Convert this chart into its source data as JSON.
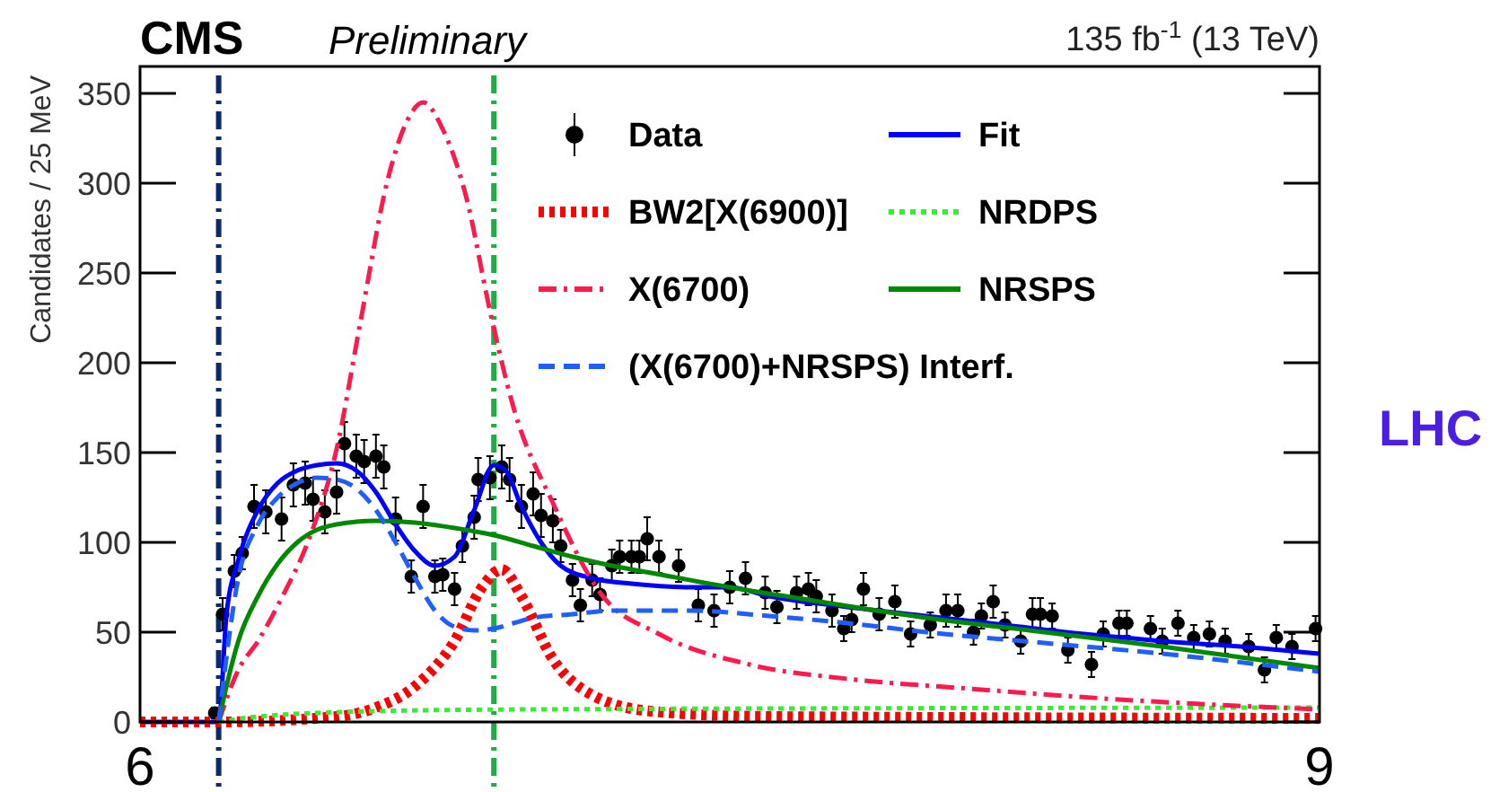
{
  "chart_data": {
    "type": "line",
    "title": "CMS",
    "subtitle": "Preliminary",
    "ylabel": "Candidates / 25 MeV",
    "annotations": [
      "135 fb$^{-1}$ (13 TeV)",
      "LHC"
    ],
    "xlim": [
      6,
      9
    ],
    "xticks": [
      6,
      9
    ],
    "ylim": [
      0,
      365
    ],
    "yticks": [
      0,
      50,
      100,
      150,
      200,
      250,
      300,
      350
    ],
    "grid": false,
    "legend": "top right",
    "ref_lines": [
      {
        "axis": "x",
        "value": 6.2,
        "color": "#0a2a6e",
        "line_style": "dashdot"
      },
      {
        "axis": "x",
        "value": 6.9,
        "color": "#22aa44",
        "line_style": "dashdot"
      }
    ],
    "series": [
      {
        "name": "Data",
        "type": "scatter",
        "marker": "circle",
        "color": "#000000",
        "x": [
          6.19,
          6.21,
          6.24,
          6.26,
          6.29,
          6.32,
          6.36,
          6.39,
          6.42,
          6.44,
          6.47,
          6.5,
          6.52,
          6.55,
          6.57,
          6.6,
          6.62,
          6.65,
          6.69,
          6.72,
          6.75,
          6.77,
          6.8,
          6.82,
          6.85,
          6.86,
          6.89,
          6.92,
          6.94,
          6.97,
          7.0,
          7.02,
          7.05,
          7.07,
          7.1,
          7.12,
          7.15,
          7.17,
          7.2,
          7.22,
          7.25,
          7.27,
          7.29,
          7.32,
          7.37,
          7.42,
          7.46,
          7.5,
          7.54,
          7.59,
          7.62,
          7.67,
          7.7,
          7.72,
          7.76,
          7.79,
          7.81,
          7.84,
          7.88,
          7.92,
          7.96,
          8.01,
          8.05,
          8.08,
          8.12,
          8.14,
          8.17,
          8.2,
          8.24,
          8.27,
          8.29,
          8.32,
          8.36,
          8.42,
          8.45,
          8.49,
          8.51,
          8.57,
          8.6,
          8.64,
          8.68,
          8.72,
          8.76,
          8.82,
          8.86,
          8.89,
          8.93,
          8.99
        ],
        "values": [
          5,
          60,
          84,
          94,
          120,
          117,
          113,
          132,
          133,
          124,
          117,
          128,
          155,
          148,
          145,
          148,
          142,
          113,
          81,
          120,
          81,
          82,
          74,
          98,
          114,
          135,
          136,
          142,
          135,
          120,
          127,
          115,
          112,
          98,
          79,
          65,
          79,
          71,
          87,
          92,
          92,
          92,
          102,
          92,
          87,
          65,
          62,
          75,
          80,
          72,
          64,
          72,
          74,
          70,
          62,
          52,
          57,
          74,
          60,
          67,
          49,
          54,
          62,
          62,
          50,
          59,
          67,
          54,
          45,
          60,
          60,
          59,
          40,
          32,
          49,
          55,
          55,
          52,
          45,
          55,
          47,
          49,
          45,
          42,
          29,
          47,
          42,
          52
        ],
        "errors": [
          3,
          9,
          9,
          9,
          12,
          12,
          12,
          12,
          12,
          12,
          12,
          12,
          12,
          12,
          12,
          12,
          12,
          12,
          9,
          12,
          9,
          9,
          9,
          9,
          12,
          12,
          12,
          12,
          12,
          12,
          12,
          12,
          12,
          9,
          9,
          9,
          9,
          9,
          9,
          9,
          9,
          9,
          12,
          9,
          9,
          9,
          9,
          9,
          9,
          9,
          9,
          9,
          9,
          9,
          9,
          7,
          7,
          9,
          9,
          9,
          7,
          7,
          9,
          9,
          7,
          7,
          9,
          7,
          7,
          9,
          9,
          7,
          7,
          7,
          7,
          7,
          7,
          7,
          7,
          7,
          7,
          7,
          7,
          7,
          7,
          7,
          7,
          7
        ]
      },
      {
        "name": "Fit",
        "line_style": "solid",
        "color": "#0000ff",
        "x": [
          6.0,
          6.19,
          6.2,
          6.22,
          6.25,
          6.3,
          6.35,
          6.4,
          6.45,
          6.5,
          6.55,
          6.6,
          6.65,
          6.7,
          6.75,
          6.8,
          6.85,
          6.9,
          6.93,
          6.97,
          7.02,
          7.07,
          7.15,
          7.25,
          7.4,
          7.5,
          7.6,
          7.8,
          8.0,
          8.2,
          8.4,
          8.5,
          8.6,
          8.8,
          9.0
        ],
        "values": [
          0,
          0,
          0,
          60,
          90,
          118,
          133,
          140,
          143,
          144,
          140,
          128,
          110,
          95,
          87,
          92,
          118,
          143,
          140,
          120,
          100,
          87,
          80,
          77,
          75,
          75,
          70,
          64,
          59,
          54,
          49,
          47,
          45,
          42,
          38
        ]
      },
      {
        "name": "BW2[X(6900)]",
        "line_style": "dotted",
        "color": "#ff0000",
        "x": [
          6.0,
          6.2,
          6.5,
          6.6,
          6.7,
          6.8,
          6.87,
          6.92,
          6.97,
          7.05,
          7.15,
          7.3,
          7.6,
          9.0
        ],
        "values": [
          0,
          0,
          3,
          8,
          20,
          45,
          75,
          85,
          70,
          35,
          15,
          6,
          3,
          2
        ]
      },
      {
        "name": "NRDPS",
        "line_style": "dotted",
        "color": "#33ee33",
        "x": [
          6.2,
          6.3,
          6.6,
          7.0,
          9.0
        ],
        "values": [
          0,
          3,
          6,
          7,
          8
        ]
      },
      {
        "name": "X(6700)",
        "line_style": "dashdot",
        "color": "#ff1a4d",
        "x": [
          6.2,
          6.25,
          6.3,
          6.36,
          6.43,
          6.5,
          6.56,
          6.63,
          6.68,
          6.72,
          6.77,
          6.83,
          6.89,
          6.95,
          7.05,
          7.17,
          7.32,
          7.55,
          7.8,
          8.08,
          8.53,
          9.0
        ],
        "values": [
          0,
          29,
          45,
          69,
          102,
          152,
          222,
          302,
          335,
          345,
          330,
          292,
          229,
          175,
          122,
          72,
          49,
          32,
          24,
          19,
          12,
          7
        ]
      },
      {
        "name": "NRSPS",
        "line_style": "solid",
        "color": "#008800",
        "x": [
          6.2,
          6.22,
          6.25,
          6.3,
          6.35,
          6.4,
          6.45,
          6.5,
          6.6,
          6.7,
          6.8,
          6.9,
          7.0,
          7.1,
          7.2,
          7.3,
          7.5,
          7.7,
          8.0,
          8.3,
          8.6,
          9.0
        ],
        "values": [
          0,
          20,
          45,
          70,
          88,
          100,
          107,
          110,
          112,
          111,
          108,
          104,
          98,
          92,
          87,
          83,
          75,
          68,
          58,
          50,
          42,
          30
        ]
      },
      {
        "name": "(X(6700)+NRSPS) Interf.",
        "line_style": "dashed",
        "color": "#1f5fff",
        "x": [
          6.2,
          6.25,
          6.3,
          6.35,
          6.4,
          6.45,
          6.5,
          6.55,
          6.6,
          6.65,
          6.7,
          6.75,
          6.8,
          6.85,
          6.9,
          6.95,
          7.0,
          7.1,
          7.2,
          7.4,
          7.6,
          7.8,
          8.0,
          8.3,
          8.6,
          9.0
        ],
        "values": [
          0,
          80,
          110,
          125,
          133,
          136,
          135,
          130,
          118,
          100,
          80,
          62,
          53,
          51,
          52,
          55,
          58,
          60,
          62,
          62,
          59,
          55,
          50,
          44,
          38,
          28
        ]
      }
    ]
  }
}
